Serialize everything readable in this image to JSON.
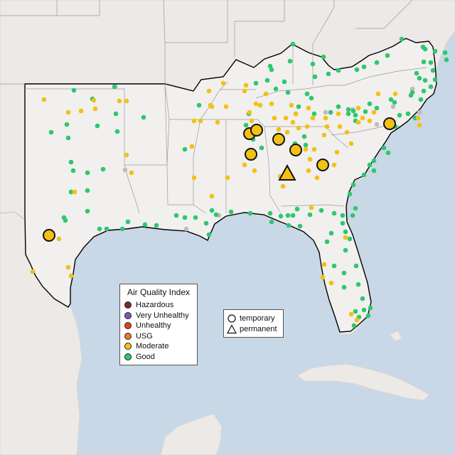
{
  "map": {
    "colors": {
      "water": "#c9d8e6",
      "land": "#ece9e6",
      "highlighted_region": "#f1f0ee",
      "state_line": "#9a9a9a",
      "region_outline": "#000000"
    }
  },
  "aqi_legend": {
    "title": "Air Quality Index",
    "items": [
      {
        "label": "Hazardous",
        "color": "#7e2a22"
      },
      {
        "label": "Very Unhealthy",
        "color": "#8a4fb8"
      },
      {
        "label": "Unhealthy",
        "color": "#e2402b"
      },
      {
        "label": "USG",
        "color": "#e37e22"
      },
      {
        "label": "Moderate",
        "color": "#f2c116"
      },
      {
        "label": "Good",
        "color": "#2ec76e"
      }
    ]
  },
  "type_legend": {
    "items": [
      {
        "label": "temporary",
        "shape": "circle-icon"
      },
      {
        "label": "permanent",
        "shape": "triangle-icon"
      }
    ]
  },
  "monitors": [
    {
      "category": "Moderate",
      "type": "temporary"
    },
    {
      "category": "Moderate",
      "type": "temporary"
    },
    {
      "category": "Moderate",
      "type": "temporary"
    },
    {
      "category": "Moderate",
      "type": "temporary"
    },
    {
      "category": "Moderate",
      "type": "temporary"
    },
    {
      "category": "Moderate",
      "type": "temporary"
    },
    {
      "category": "Moderate",
      "type": "temporary"
    },
    {
      "category": "Moderate",
      "type": "temporary"
    },
    {
      "category": "Moderate",
      "type": "permanent"
    }
  ],
  "stations": {
    "good_count": 150,
    "moderate_count": 80,
    "no_data_count": 10
  }
}
